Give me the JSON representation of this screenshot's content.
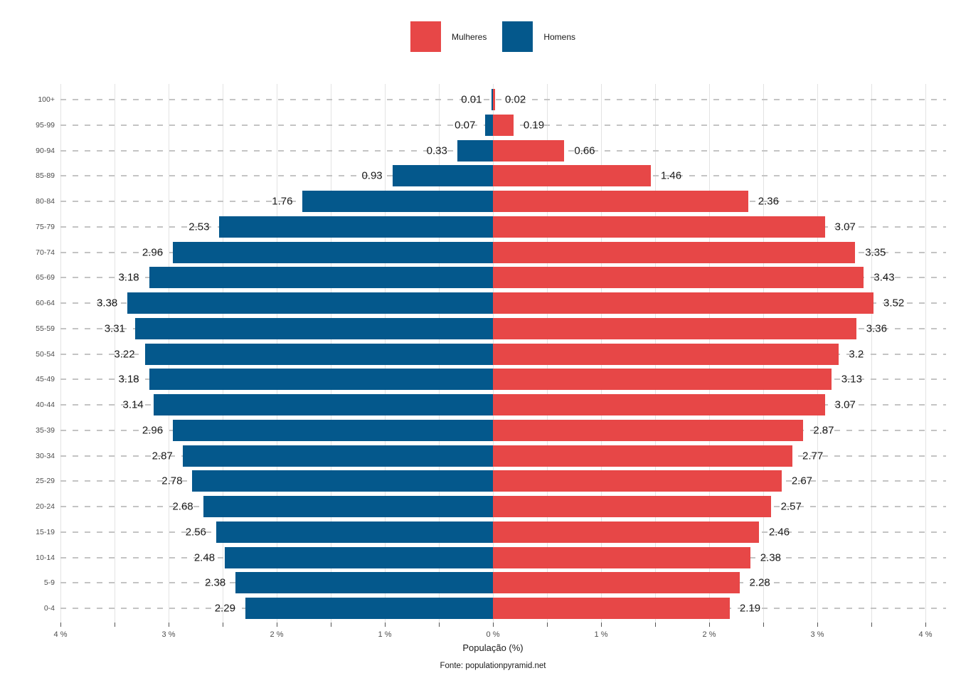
{
  "chart_data": {
    "type": "bar",
    "subtype": "population-pyramid",
    "xlabel": "População (%)",
    "caption": "Fonte: populationpyramid.net",
    "categories": [
      "100+",
      "95-99",
      "90-94",
      "85-89",
      "80-84",
      "75-79",
      "70-74",
      "65-69",
      "60-64",
      "55-59",
      "50-54",
      "45-49",
      "40-44",
      "35-39",
      "30-34",
      "25-29",
      "20-24",
      "15-19",
      "10-14",
      "5-9",
      "0-4"
    ],
    "series": [
      {
        "name": "Mulheres",
        "side": "right",
        "color": "#E74747",
        "values": [
          0.02,
          0.19,
          0.66,
          1.46,
          2.36,
          3.07,
          3.35,
          3.43,
          3.52,
          3.36,
          3.2,
          3.13,
          3.07,
          2.87,
          2.77,
          2.67,
          2.57,
          2.46,
          2.38,
          2.28,
          2.19
        ]
      },
      {
        "name": "Homens",
        "side": "left",
        "color": "#04588C",
        "values": [
          0.01,
          0.07,
          0.33,
          0.93,
          1.76,
          2.53,
          2.96,
          3.18,
          3.38,
          3.31,
          3.22,
          3.18,
          3.14,
          2.96,
          2.87,
          2.78,
          2.68,
          2.56,
          2.48,
          2.38,
          2.29
        ]
      }
    ],
    "x_axis": {
      "tick_labels": [
        "4 %",
        "3 %",
        "2 %",
        "1 %",
        "0 %",
        "1 %",
        "2 %",
        "3 %",
        "4 %"
      ],
      "max_pct": 4,
      "major_step_pct": 1,
      "minor_step_pct": 0.5
    },
    "ylim": null,
    "legend_position": "top-center",
    "grid": {
      "horizontal": "dashed",
      "vertical": "solid"
    },
    "colors": {
      "background": "#ffffff",
      "grid_dashed": "#c4c4c4",
      "grid_solid": "#e3e3e3",
      "axis_text": "#4d4d4d",
      "label_text": "#1a1a1a"
    }
  }
}
